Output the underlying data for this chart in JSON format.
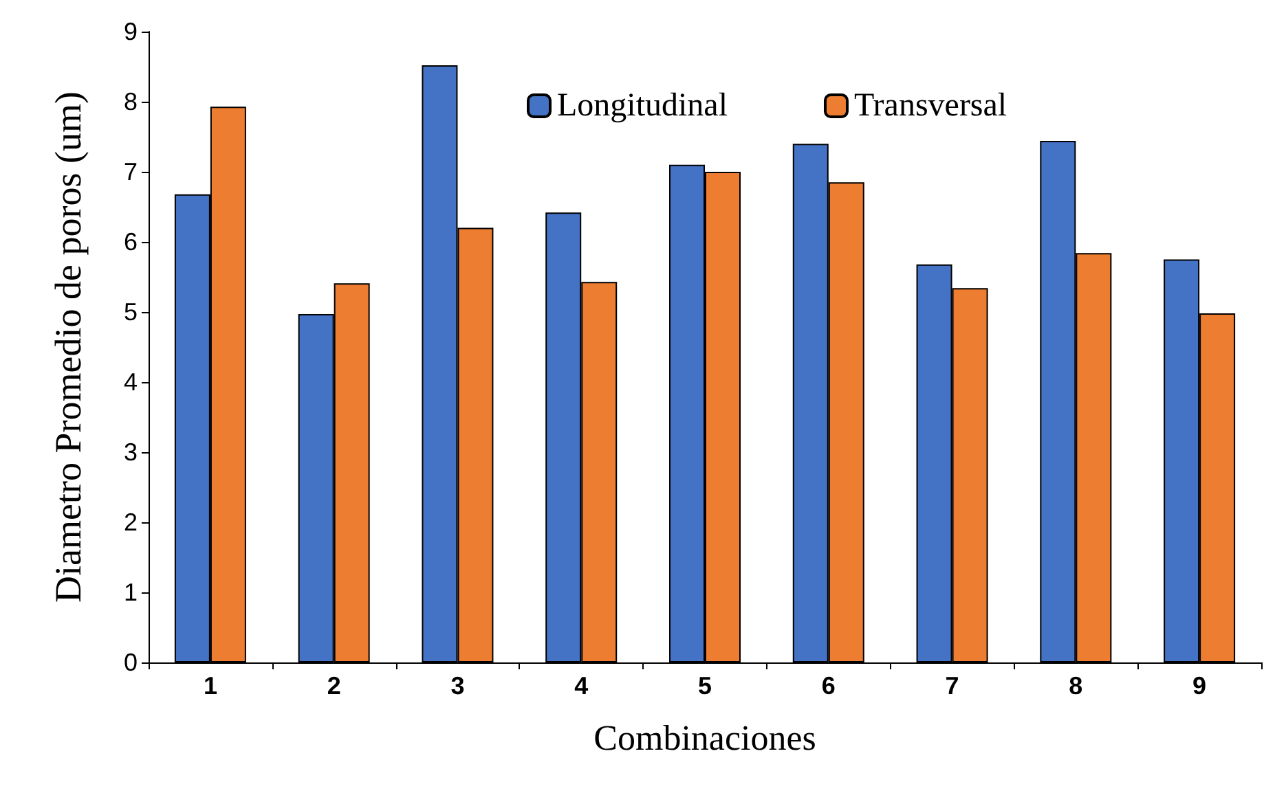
{
  "chart_data": {
    "type": "bar",
    "xlabel": "Combinaciones",
    "ylabel": "Diametro Promedio de poros (um)",
    "categories": [
      "1",
      "2",
      "3",
      "4",
      "5",
      "6",
      "7",
      "8",
      "9"
    ],
    "series": [
      {
        "name": "Longitudinal",
        "color": "#4472c4",
        "values": [
          6.68,
          4.97,
          8.52,
          6.42,
          7.1,
          7.4,
          5.68,
          7.44,
          5.75
        ]
      },
      {
        "name": "Transversal",
        "color": "#ed7d31",
        "values": [
          7.93,
          5.41,
          6.2,
          5.43,
          7.0,
          6.85,
          5.34,
          5.84,
          4.98
        ]
      }
    ],
    "ylim": [
      0,
      9
    ],
    "yticks": [
      0,
      1,
      2,
      3,
      4,
      5,
      6,
      7,
      8,
      9
    ],
    "grid": false,
    "legend": "top"
  }
}
